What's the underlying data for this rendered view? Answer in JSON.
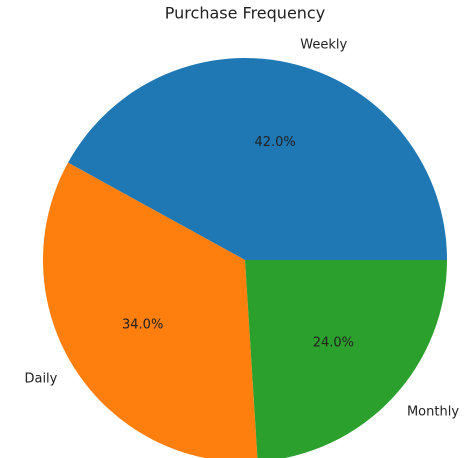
{
  "chart_data": {
    "type": "pie",
    "title": "Purchase Frequency",
    "categories": [
      "Weekly",
      "Daily",
      "Monthly"
    ],
    "values": [
      42,
      34,
      24
    ],
    "value_labels": [
      "42.0%",
      "34.0%",
      "24.0%"
    ],
    "colors": [
      "#1f77b4",
      "#ff7f0e",
      "#2ca02c"
    ]
  }
}
